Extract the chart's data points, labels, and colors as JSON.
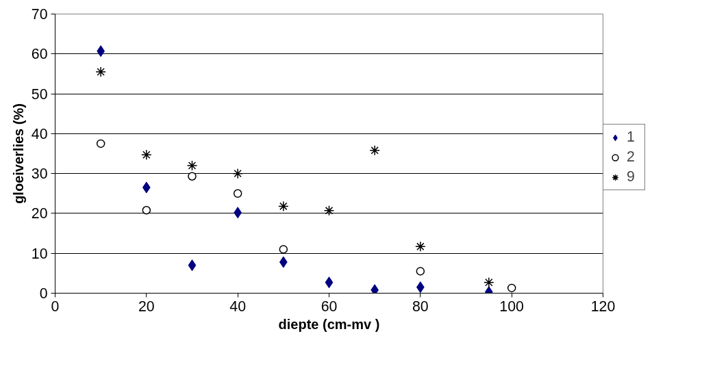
{
  "chart_data": {
    "type": "scatter",
    "xlabel": "diepte (cm-mv )",
    "ylabel": "gloeiverlies (%)",
    "xlim": [
      0,
      120
    ],
    "ylim": [
      0,
      70
    ],
    "xticks": [
      0,
      20,
      40,
      60,
      80,
      100,
      120
    ],
    "yticks": [
      0,
      10,
      20,
      30,
      40,
      50,
      60,
      70
    ],
    "grid": "y",
    "legend": "right",
    "series": [
      {
        "name": "1",
        "color": "#000080",
        "marker": "diamond",
        "x": [
          10,
          20,
          30,
          40,
          50,
          60,
          70,
          80,
          95
        ],
        "values": [
          60.7,
          26.5,
          7,
          20.2,
          7.8,
          2.7,
          0.8,
          1.5,
          0.3
        ]
      },
      {
        "name": "2",
        "color": "#000000",
        "marker": "circle",
        "x": [
          10,
          20,
          30,
          40,
          50,
          80,
          100
        ],
        "values": [
          37.5,
          20.8,
          29.3,
          25,
          11,
          5.5,
          1.3
        ]
      },
      {
        "name": "9",
        "color": "#000000",
        "marker": "cross",
        "x": [
          10,
          20,
          30,
          40,
          50,
          60,
          70,
          80,
          95
        ],
        "values": [
          55.5,
          34.7,
          32,
          30,
          21.8,
          20.7,
          35.8,
          11.7,
          2.7
        ]
      }
    ]
  }
}
